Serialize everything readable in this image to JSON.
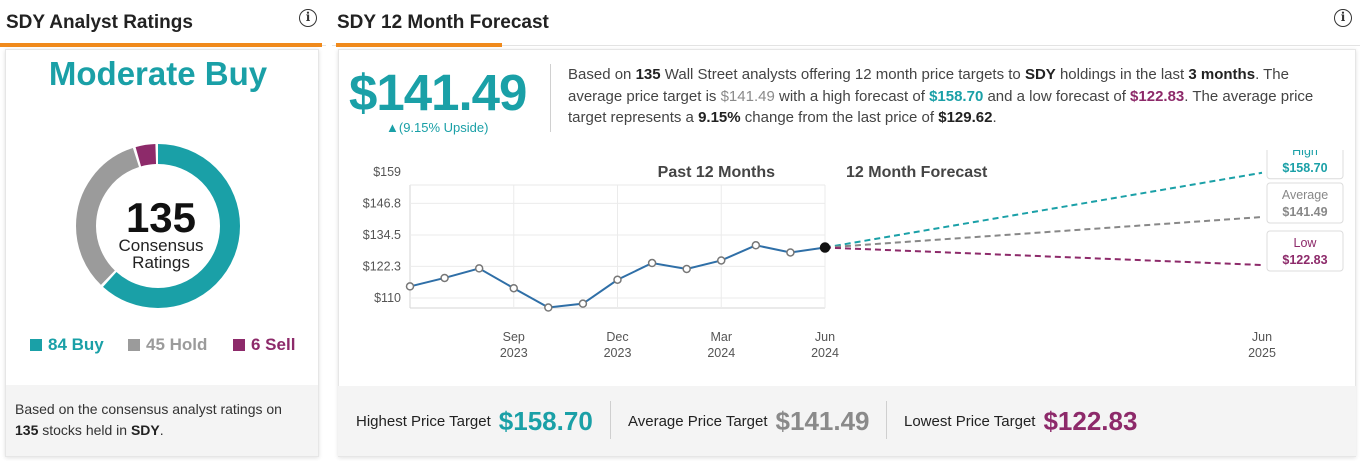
{
  "ratings_panel": {
    "title": "SDY Analyst Ratings",
    "consensus": "Moderate Buy",
    "total": "135",
    "total_label_1": "Consensus",
    "total_label_2": "Ratings",
    "buy_label": "84 Buy",
    "hold_label": "45 Hold",
    "sell_label": "6 Sell",
    "buy_count": 84,
    "hold_count": 45,
    "sell_count": 6,
    "colors": {
      "buy": "#1aa0a7",
      "hold": "#9b9b9b",
      "sell": "#8d2a6a",
      "accent": "#f08a1c"
    },
    "footer_1": "Based on the consensus analyst ratings on",
    "footer_count": "135",
    "footer_2": " stocks held in ",
    "footer_ticker": "SDY",
    "footer_end": "."
  },
  "forecast_panel": {
    "title": "SDY 12 Month Forecast",
    "price": "$141.49",
    "upside": "▲(9.15% Upside)",
    "desc": {
      "p1": "Based on ",
      "analysts": "135",
      "p2": " Wall Street analysts offering 12 month price targets to ",
      "ticker": "SDY",
      "p3": " holdings in the last ",
      "months": "3 months",
      "p4": ". The average price target is ",
      "avg": "$141.49",
      "p5": " with a high forecast of ",
      "high": "$158.70",
      "p6": " and a low forecast of ",
      "low": "$122.83",
      "p7": ". The average price target represents a ",
      "pct": "9.15%",
      "p8": " change from the last price of ",
      "last": "$129.62",
      "p9": "."
    }
  },
  "chart_data": {
    "type": "line",
    "title_left": "Past 12 Months",
    "title_right": "12 Month Forecast",
    "y_ticks": [
      "$159",
      "$146.8",
      "$134.5",
      "$122.3",
      "$110"
    ],
    "y_tick_values": [
      159,
      146.8,
      134.5,
      122.3,
      110
    ],
    "ylim": [
      110,
      159
    ],
    "x_labels": [
      {
        "month": "Sep",
        "year": "2023"
      },
      {
        "month": "Dec",
        "year": "2023"
      },
      {
        "month": "Mar",
        "year": "2024"
      },
      {
        "month": "Jun",
        "year": "2024"
      },
      {
        "month": "Jun",
        "year": "2025"
      }
    ],
    "history": {
      "x": [
        "2023-06",
        "2023-07",
        "2023-08",
        "2023-09",
        "2023-10",
        "2023-11",
        "2023-12",
        "2024-01",
        "2024-02",
        "2024-03",
        "2024-04",
        "2024-05",
        "2024-06"
      ],
      "values": [
        114.5,
        117.8,
        121.5,
        113.8,
        106.3,
        107.8,
        117.1,
        123.6,
        121.3,
        124.6,
        130.5,
        127.7,
        129.62
      ]
    },
    "forecast": {
      "start": "2024-06",
      "end": "2025-06",
      "series": [
        {
          "name": "High",
          "value": 158.7,
          "label": "$158.70",
          "color": "#1aa0a7"
        },
        {
          "name": "Average",
          "value": 141.49,
          "label": "$141.49",
          "color": "#888888"
        },
        {
          "name": "Low",
          "value": 122.83,
          "label": "$122.83",
          "color": "#8d2a6a"
        }
      ]
    },
    "line_color": "#2f6fa7",
    "grid": true
  },
  "targets": {
    "high_label": "Highest Price Target",
    "high_value": "$158.70",
    "avg_label": "Average Price Target",
    "avg_value": "$141.49",
    "low_label": "Lowest Price Target",
    "low_value": "$122.83"
  }
}
